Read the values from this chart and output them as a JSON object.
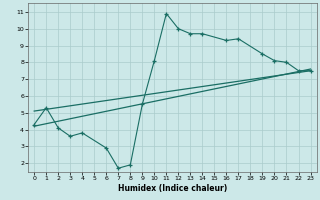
{
  "xlabel": "Humidex (Indice chaleur)",
  "bg_color": "#cce8e8",
  "grid_color": "#aacccc",
  "line_color": "#1a6e64",
  "xlim": [
    -0.5,
    23.5
  ],
  "ylim": [
    1.5,
    11.5
  ],
  "xticks": [
    0,
    1,
    2,
    3,
    4,
    5,
    6,
    7,
    8,
    9,
    10,
    11,
    12,
    13,
    14,
    15,
    16,
    17,
    18,
    19,
    20,
    21,
    22,
    23
  ],
  "yticks": [
    2,
    3,
    4,
    5,
    6,
    7,
    8,
    9,
    10,
    11
  ],
  "line1_x": [
    0,
    1,
    2,
    3,
    4,
    6,
    7,
    8,
    9,
    10,
    11,
    12,
    13,
    14,
    16,
    17,
    19,
    20,
    21,
    22,
    23
  ],
  "line1_y": [
    4.3,
    5.3,
    4.1,
    3.6,
    3.8,
    2.9,
    1.7,
    1.9,
    5.5,
    8.1,
    10.9,
    10.0,
    9.7,
    9.7,
    9.3,
    9.4,
    8.5,
    8.1,
    8.0,
    7.5,
    7.5
  ],
  "line2_x": [
    0,
    23
  ],
  "line2_y": [
    4.2,
    7.6
  ],
  "line3_x": [
    0,
    23
  ],
  "line3_y": [
    5.1,
    7.5
  ]
}
